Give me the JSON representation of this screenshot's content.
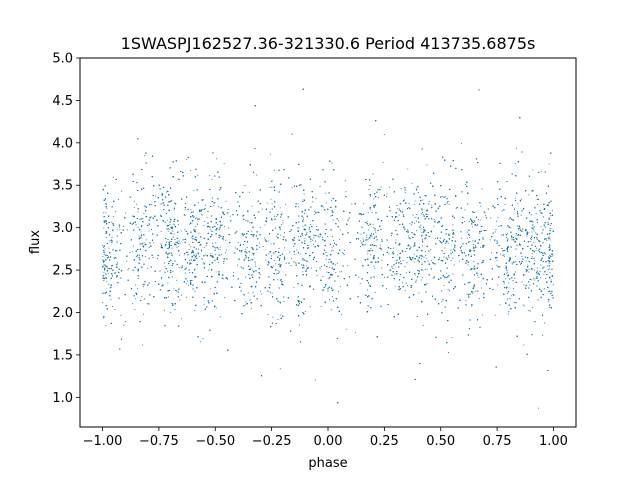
{
  "chart_data": {
    "type": "scatter",
    "title": "1SWASPJ162527.36-321330.6 Period 413735.6875s",
    "xlabel": "phase",
    "ylabel": "flux",
    "xlim": [
      -1.1,
      1.1
    ],
    "ylim": [
      0.65,
      5.0
    ],
    "x_ticks": [
      "−1.00",
      "−0.75",
      "−0.50",
      "−0.25",
      "0.00",
      "0.25",
      "0.50",
      "0.75",
      "1.00"
    ],
    "x_tick_values": [
      -1.0,
      -0.75,
      -0.5,
      -0.25,
      0.0,
      0.25,
      0.5,
      0.75,
      1.0
    ],
    "y_ticks": [
      "1.0",
      "1.5",
      "2.0",
      "2.5",
      "3.0",
      "3.5",
      "4.0",
      "4.5",
      "5.0"
    ],
    "y_tick_values": [
      1.0,
      1.5,
      2.0,
      2.5,
      3.0,
      3.5,
      4.0,
      4.5,
      5.0
    ],
    "grid": false,
    "marker_color": "#1f77b4",
    "series": [
      {
        "band_centers": [
          -0.98,
          -0.82,
          -0.7,
          -0.6,
          -0.5,
          -0.35,
          -0.22,
          -0.1,
          0.02,
          0.2,
          0.32,
          0.42,
          0.52,
          0.65,
          0.8,
          0.9,
          0.98
        ],
        "band_flux_means": [
          2.65,
          2.9,
          2.85,
          2.8,
          2.85,
          2.7,
          2.7,
          2.75,
          2.7,
          2.9,
          2.8,
          2.85,
          2.85,
          2.7,
          2.7,
          2.7,
          2.75
        ],
        "flux_range": [
          0.85,
          4.7
        ],
        "point_count": 18000
      }
    ]
  }
}
